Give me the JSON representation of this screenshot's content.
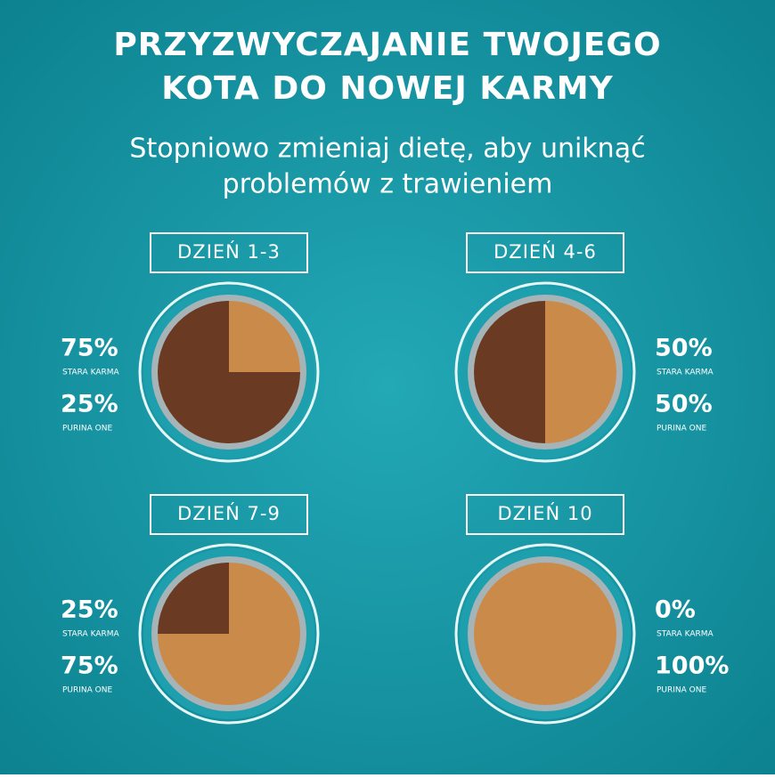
{
  "header": {
    "title": [
      "PRZYZWYCZAJANIE TWOJEGO",
      "KOTA DO NOWEJ KARMY"
    ],
    "subtitle": [
      "Stopniowo zmieniaj dietę, aby uniknąć",
      "problemów z trawieniem"
    ]
  },
  "stages": [
    {
      "label": "DZIEŃ 1-3",
      "old": {
        "value": 75,
        "label": "75%"
      },
      "old_name": "STARA KARMA",
      "new": {
        "value": 25,
        "label": "25%"
      },
      "new_name": "PURINA ONE"
    },
    {
      "label": "DZIEŃ 4-6",
      "old": {
        "value": 50,
        "label": "50%"
      },
      "old_name": "STARA KARMA",
      "new": {
        "value": 50,
        "label": "50%"
      },
      "new_name": "PURINA ONE"
    },
    {
      "label": "DZIEŃ 7-9",
      "old": {
        "value": 25,
        "label": "25%"
      },
      "old_name": "STARA KARMA",
      "new": {
        "value": 75,
        "label": "75%"
      },
      "new_name": "PURINA ONE"
    },
    {
      "label": "DZIEŃ 10",
      "old": {
        "value": 0,
        "label": "0%"
      },
      "old_name": "STARA KARMA",
      "new": {
        "value": 100,
        "label": "100%"
      },
      "new_name": "PURINA ONE"
    }
  ]
}
